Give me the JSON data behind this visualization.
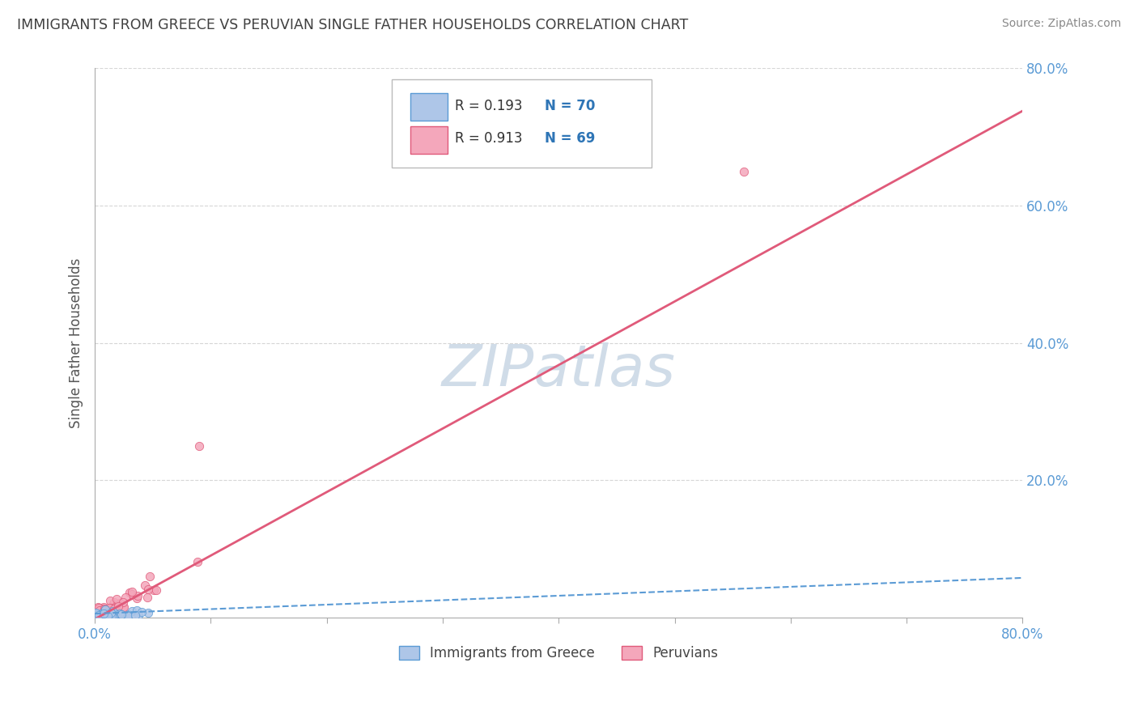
{
  "title": "IMMIGRANTS FROM GREECE VS PERUVIAN SINGLE FATHER HOUSEHOLDS CORRELATION CHART",
  "source": "Source: ZipAtlas.com",
  "ylabel": "Single Father Households",
  "xlim": [
    0.0,
    0.8
  ],
  "ylim": [
    0.0,
    0.8
  ],
  "legend_entries": [
    {
      "label": "Immigrants from Greece",
      "R": "0.193",
      "N": "70"
    },
    {
      "label": "Peruvians",
      "R": "0.913",
      "N": "69"
    }
  ],
  "greece_scatter_color": "#aec6e8",
  "greece_scatter_edge": "#5b9bd5",
  "peru_scatter_color": "#f4a7bb",
  "peru_scatter_edge": "#e05a7a",
  "greece_line_color": "#5b9bd5",
  "peru_line_color": "#e05a7a",
  "legend_rect_greece": "#aec6e8",
  "legend_rect_peru": "#f4a7bb",
  "legend_text_color": "#333333",
  "legend_N_color": "#2e75b6",
  "watermark_color": "#d0dce8",
  "background_color": "#ffffff",
  "grid_color": "#cccccc",
  "title_color": "#404040",
  "tick_color": "#5b9bd5",
  "ylabel_color": "#555555"
}
